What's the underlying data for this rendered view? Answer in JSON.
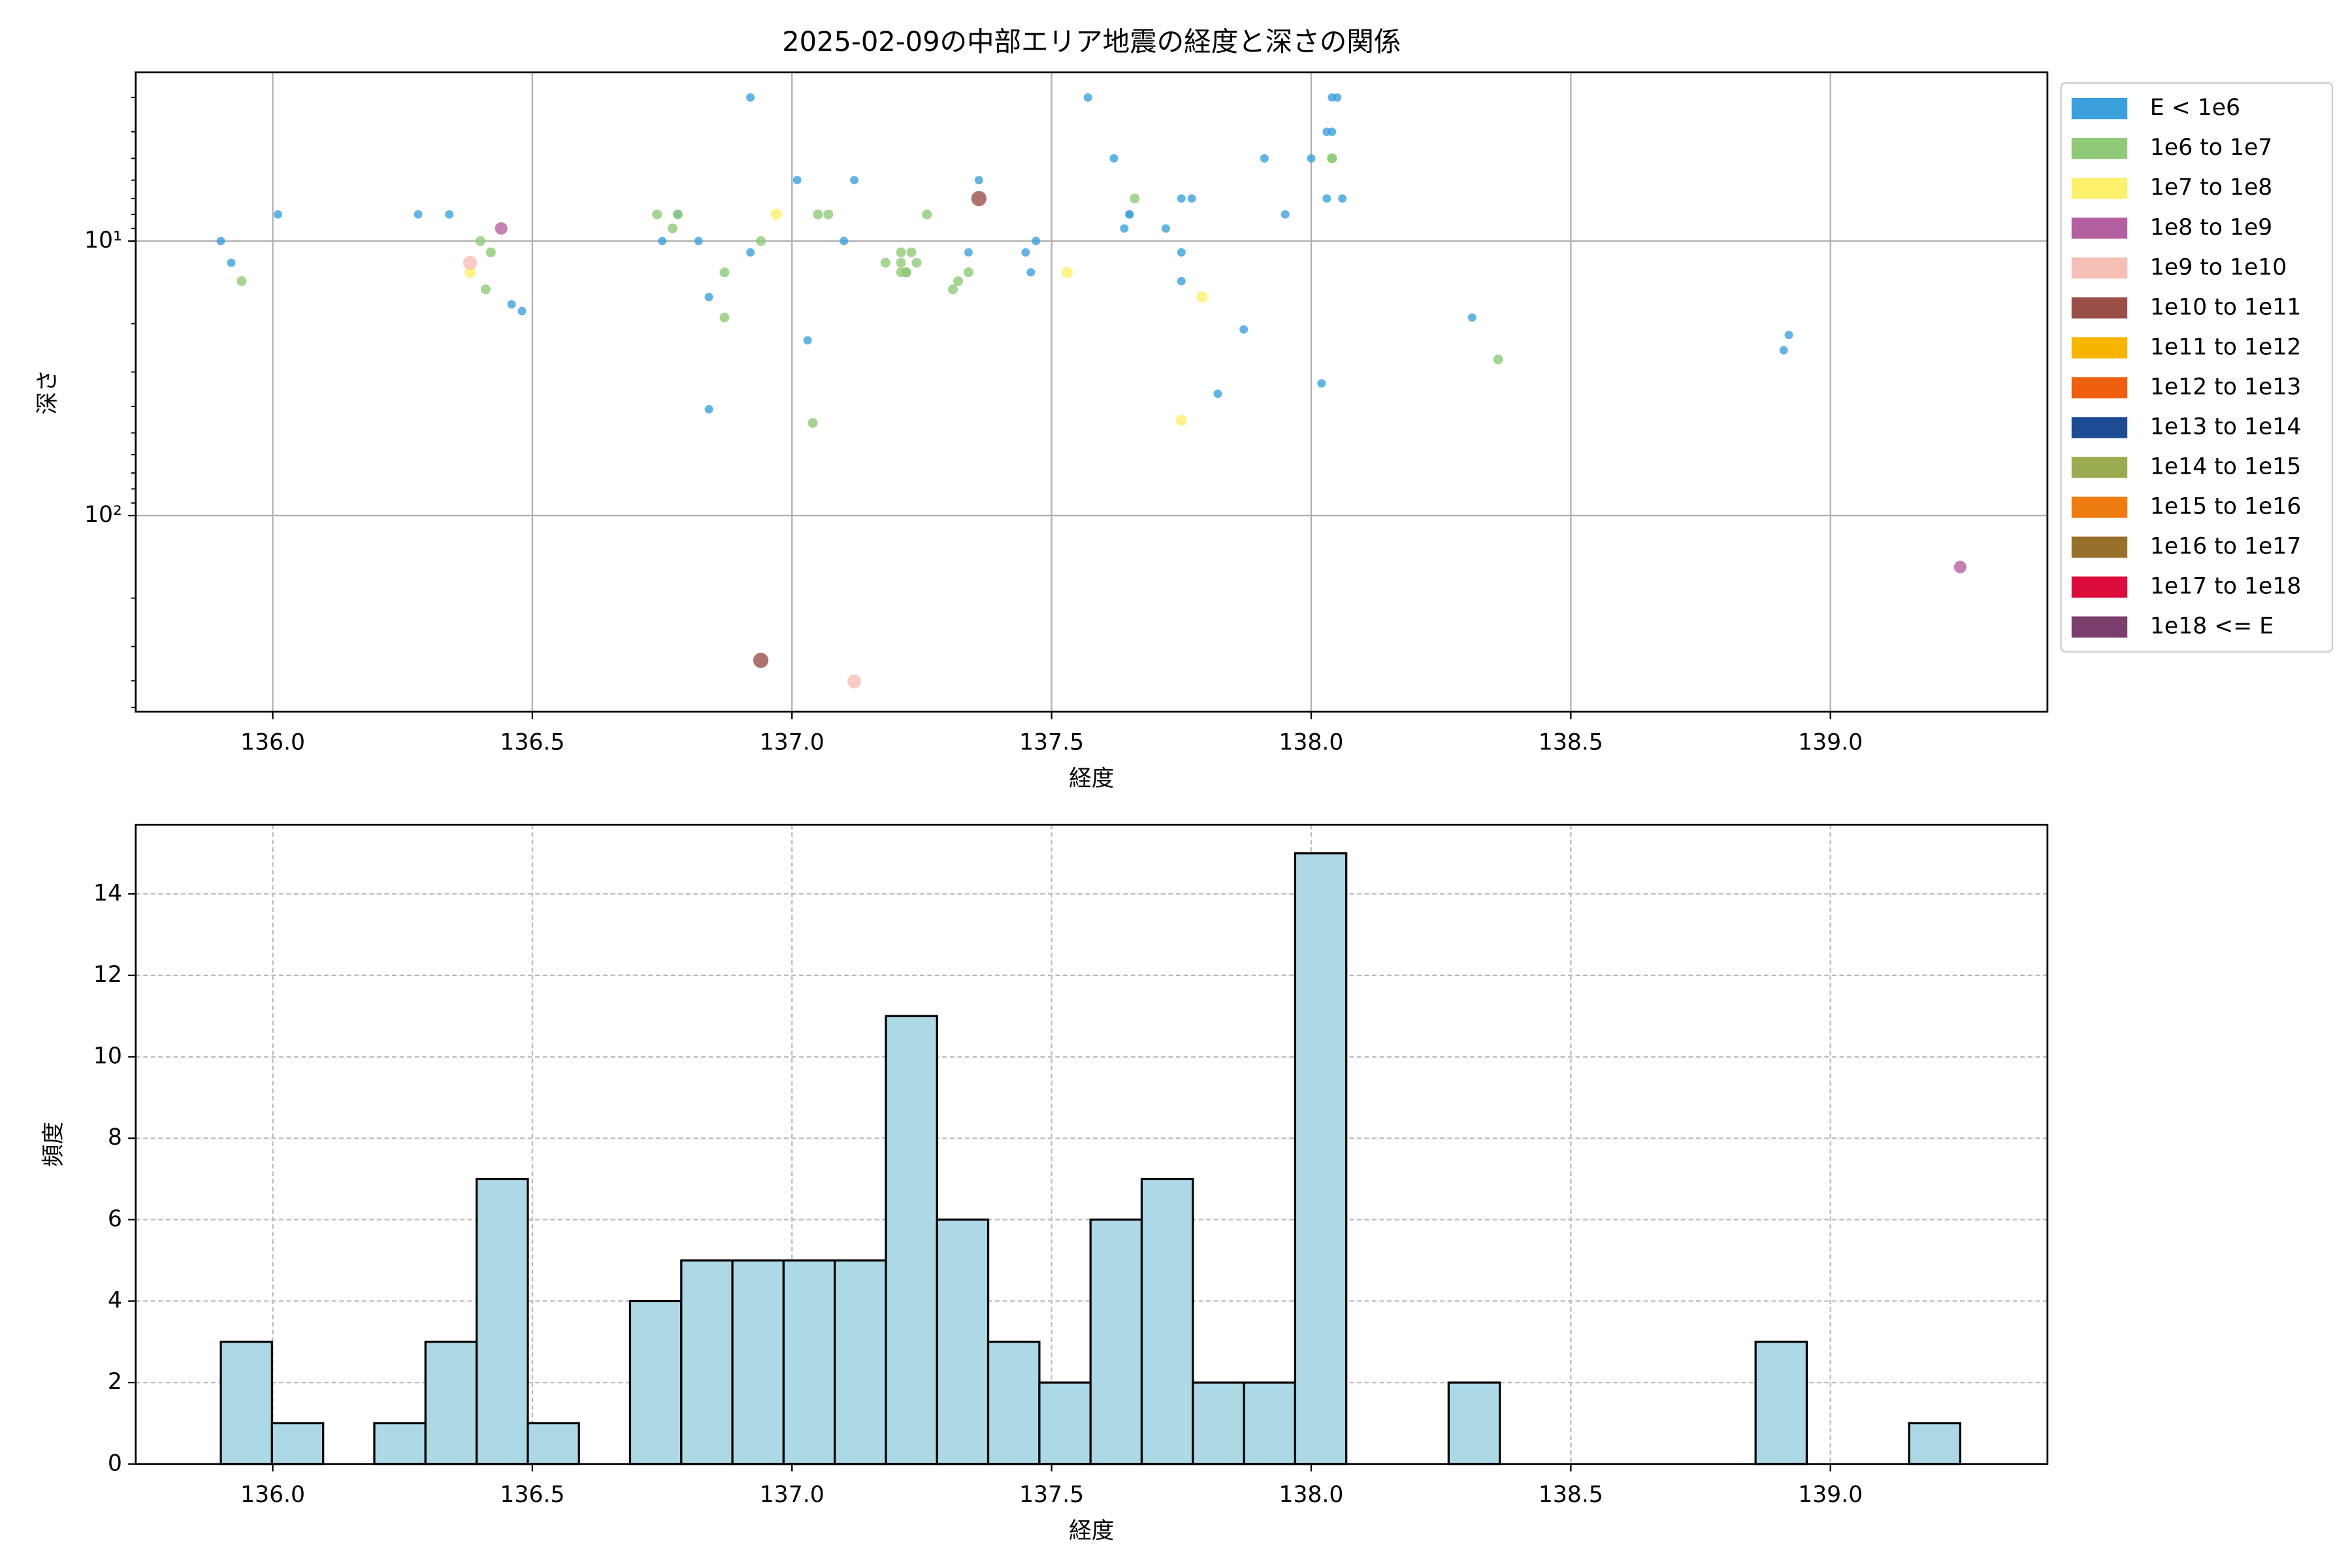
{
  "chart_data": [
    {
      "type": "scatter",
      "title": "2025-02-09の中部エリア地震の経度と深さの関係",
      "xlabel": "経度",
      "ylabel": "深さ",
      "xlim": [
        135.736,
        139.418
      ],
      "ylim": [
        2.43,
        518
      ],
      "yscale": "log",
      "yinverted": true,
      "xticks": [
        {
          "value": 136,
          "label": "136.0"
        },
        {
          "value": 136.5,
          "label": "136.5"
        },
        {
          "value": 137,
          "label": "137.0"
        },
        {
          "value": 137.5,
          "label": "137.5"
        },
        {
          "value": 138,
          "label": "138.0"
        },
        {
          "value": 138.5,
          "label": "138.5"
        },
        {
          "value": 139,
          "label": "139.0"
        }
      ],
      "yticks": [
        {
          "value": 10,
          "label": "10¹"
        },
        {
          "value": 100,
          "label": "10²"
        }
      ],
      "yminorticks": [
        3,
        4,
        5,
        6,
        7,
        8,
        9,
        20,
        30,
        40,
        50,
        60,
        70,
        80,
        90,
        200,
        300,
        400,
        500
      ],
      "grid": true,
      "grid_style": "solid",
      "legend": "outside right",
      "series": [
        {
          "name": "E < 1e6",
          "color": "#3ca0dc",
          "x": [
            135.9,
            135.92,
            136.01,
            136.28,
            136.34,
            136.46,
            136.48,
            136.75,
            136.78,
            136.82,
            136.84,
            136.84,
            136.92,
            136.92,
            137.01,
            137.03,
            137.1,
            137.12,
            137.34,
            137.36,
            137.45,
            137.46,
            137.47,
            137.57,
            137.62,
            137.64,
            137.65,
            137.65,
            137.72,
            137.75,
            137.75,
            137.75,
            137.77,
            137.82,
            137.87,
            137.91,
            137.95,
            138.0,
            138.02,
            138.03,
            138.03,
            138.04,
            138.04,
            138.05,
            138.06,
            138.31,
            138.91,
            138.92
          ],
          "values": [
            10,
            12,
            8,
            8,
            8,
            17,
            18,
            10,
            8,
            10,
            16,
            41,
            3,
            11,
            6,
            23,
            10,
            6,
            11,
            6,
            11,
            13,
            10,
            3,
            5,
            9,
            8,
            8,
            9,
            7,
            14,
            11,
            7,
            36,
            21,
            5,
            8,
            5,
            33,
            4,
            7,
            3,
            4,
            3,
            7,
            19,
            25,
            22
          ]
        },
        {
          "name": "1e6 to 1e7",
          "color": "#90c978",
          "x": [
            135.94,
            136.4,
            136.42,
            136.41,
            136.74,
            136.77,
            136.78,
            136.87,
            136.87,
            136.94,
            137.04,
            137.05,
            137.07,
            137.18,
            137.21,
            137.21,
            137.21,
            137.22,
            137.22,
            137.23,
            137.24,
            137.26,
            137.31,
            137.32,
            137.34,
            137.66,
            138.04,
            138.04,
            138.36
          ],
          "values": [
            14,
            10,
            11,
            15,
            8,
            9,
            8,
            13,
            19,
            10,
            46,
            8,
            8,
            12,
            11,
            12,
            13,
            13,
            13,
            11,
            12,
            8,
            15,
            14,
            13,
            7,
            5,
            5,
            27
          ]
        },
        {
          "name": "1e7 to 1e8",
          "color": "#fdf06a",
          "x": [
            136.38,
            136.97,
            137.53,
            137.75,
            137.79
          ],
          "values": [
            13,
            8,
            13,
            45,
            16
          ]
        },
        {
          "name": "1e8 to 1e9",
          "color": "#b460a0",
          "x": [
            136.44,
            139.25
          ],
          "values": [
            9,
            154
          ]
        },
        {
          "name": "1e9 to 1e10",
          "color": "#f5bfb5",
          "x": [
            136.38,
            137.12
          ],
          "values": [
            12,
            402
          ]
        },
        {
          "name": "1e10 to 1e11",
          "color": "#9a5048",
          "x": [
            136.94,
            137.36
          ],
          "values": [
            337,
            7
          ]
        },
        {
          "name": "1e11 to 1e12",
          "color": "#f8b500",
          "x": [],
          "values": []
        },
        {
          "name": "1e12 to 1e13",
          "color": "#ee6010",
          "x": [],
          "values": []
        },
        {
          "name": "1e13 to 1e14",
          "color": "#1d4b93",
          "x": [],
          "values": []
        },
        {
          "name": "1e14 to 1e15",
          "color": "#9aac50",
          "x": [],
          "values": []
        },
        {
          "name": "1e15 to 1e16",
          "color": "#ee7c10",
          "x": [],
          "values": []
        },
        {
          "name": "1e16 to 1e17",
          "color": "#97702c",
          "x": [],
          "values": []
        },
        {
          "name": "1e17 to 1e18",
          "color": "#dc0c3c",
          "x": [],
          "values": []
        },
        {
          "name": "1e18 <= E",
          "color": "#7a3f6c",
          "x": [],
          "values": []
        }
      ]
    },
    {
      "type": "histogram",
      "xlabel": "経度",
      "ylabel": "頻度",
      "xlim": [
        135.736,
        139.418
      ],
      "ylim": [
        0,
        15.7
      ],
      "xticks": [
        {
          "value": 136,
          "label": "136.0"
        },
        {
          "value": 136.5,
          "label": "136.5"
        },
        {
          "value": 137,
          "label": "137.0"
        },
        {
          "value": 137.5,
          "label": "137.5"
        },
        {
          "value": 138,
          "label": "138.0"
        },
        {
          "value": 138.5,
          "label": "138.5"
        },
        {
          "value": 139,
          "label": "139.0"
        }
      ],
      "yticks": [
        0,
        2,
        4,
        6,
        8,
        10,
        12,
        14
      ],
      "grid": true,
      "grid_style": "dashed",
      "color": "#add8e6",
      "edgecolor": "#000000",
      "bins": [
        135.9,
        135.9985,
        136.0971,
        136.1956,
        136.2941,
        136.3926,
        136.4912,
        136.5897,
        136.6882,
        136.7868,
        136.8853,
        136.9838,
        137.0824,
        137.1809,
        137.2794,
        137.3779,
        137.4765,
        137.575,
        137.6735,
        137.7721,
        137.8706,
        137.9691,
        138.0676,
        138.1662,
        138.2647,
        138.3632,
        138.4618,
        138.5603,
        138.6588,
        138.7574,
        138.8559,
        138.9544,
        139.0529,
        139.1515,
        139.25
      ],
      "counts": [
        3,
        1,
        0,
        1,
        3,
        7,
        1,
        0,
        4,
        5,
        5,
        5,
        5,
        11,
        6,
        3,
        2,
        6,
        7,
        2,
        2,
        15,
        0,
        0,
        2,
        0,
        0,
        0,
        0,
        0,
        3,
        0,
        0,
        1
      ]
    }
  ]
}
